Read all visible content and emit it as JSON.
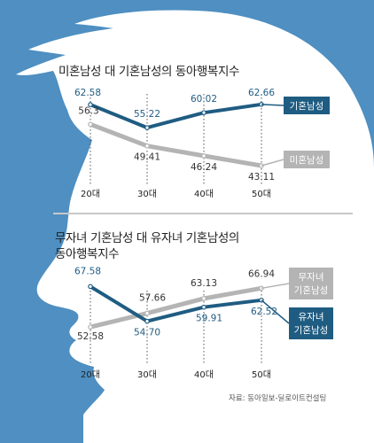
{
  "colors": {
    "background_blue": "#4f8fc1",
    "head_fill": "#ffffff",
    "series_dark": "#1f5c82",
    "series_gray": "#b4b4b4",
    "text": "#222222"
  },
  "source": "자료: 동아일보-딜로이트컨설팅",
  "chart_data": [
    {
      "type": "line",
      "title": "미혼남성 대 기혼남성의 동아행복지수",
      "categories": [
        "20대",
        "30대",
        "40대",
        "50대"
      ],
      "series": [
        {
          "name": "기혼남성",
          "values": [
            62.58,
            55.22,
            60.02,
            62.66
          ],
          "color": "#1f5c82"
        },
        {
          "name": "미혼남성",
          "values": [
            56.3,
            49.41,
            46.24,
            43.11
          ],
          "color": "#b4b4b4"
        }
      ],
      "value_labels": [
        [
          "62.58",
          "55.22",
          "60.02",
          "62.66"
        ],
        [
          "56.3",
          "49.41",
          "46.24",
          "43.11"
        ]
      ],
      "ylim": [
        40,
        66
      ],
      "grid": false,
      "legend": "right"
    },
    {
      "type": "line",
      "title": "무자녀 기혼남성 대 유자녀 기혼남성의 동아행복지수",
      "title_lines": [
        "무자녀 기혼남성 대 유자녀 기혼남성의",
        "동아행복지수"
      ],
      "categories": [
        "20대",
        "30대",
        "40대",
        "50대"
      ],
      "series": [
        {
          "name": "무자녀 기혼남성",
          "name_lines": [
            "무자녀",
            "기혼남성"
          ],
          "values": [
            52.58,
            57.66,
            63.13,
            66.94
          ],
          "color": "#b4b4b4"
        },
        {
          "name": "유자녀 기혼남성",
          "name_lines": [
            "유자녀",
            "기혼남성"
          ],
          "values": [
            67.58,
            54.7,
            59.91,
            62.52
          ],
          "color": "#1f5c82"
        }
      ],
      "value_labels": [
        [
          "52.58",
          "57.66",
          "63.13",
          "66.94"
        ],
        [
          "67.58",
          "54.70",
          "59.91",
          "62.52"
        ]
      ],
      "ylim": [
        48,
        70
      ],
      "grid": false,
      "legend": "right"
    }
  ]
}
